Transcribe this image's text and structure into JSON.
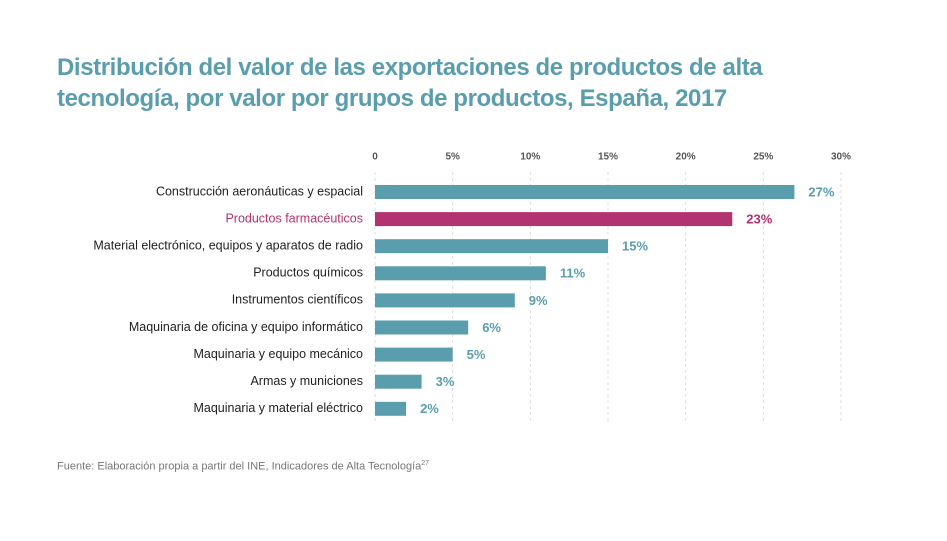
{
  "chart_data": {
    "type": "bar",
    "title": "Distribución del valor de las exportaciones de productos de alta\ntecnología, por valor por grupos de productos, España, 2017",
    "categories": [
      "Construcción aeronáuticas y espacial",
      "Productos farmacéuticos",
      "Material electrónico, equipos y aparatos de radio",
      "Productos químicos",
      "Instrumentos científicos",
      "Maquinaria de oficina y equipo informático",
      "Maquinaria y equipo mecánico",
      "Armas y municiones",
      "Maquinaria y material eléctrico"
    ],
    "values": [
      27,
      23,
      15,
      11,
      9,
      6,
      5,
      3,
      2
    ],
    "value_labels": [
      "27%",
      "23%",
      "15%",
      "11%",
      "9%",
      "6%",
      "5%",
      "3%",
      "2%"
    ],
    "colors": [
      "#5a9ead",
      "#b2336f",
      "#5a9ead",
      "#5a9ead",
      "#5a9ead",
      "#5a9ead",
      "#5a9ead",
      "#5a9ead",
      "#5a9ead"
    ],
    "xlim": [
      0,
      30
    ],
    "xticks": [
      0,
      {
        "value": 5,
        "label": "5%"
      },
      {
        "value": 10,
        "label": "10%"
      },
      {
        "value": 15,
        "label": "15%"
      },
      {
        "value": 20,
        "label": "20%"
      },
      {
        "value": 25,
        "label": "25%"
      },
      {
        "value": 30,
        "label": "30%"
      }
    ],
    "grid": true,
    "source": "Fuente: Elaboración propia a partir del INE, Indicadores de Alta Tecnología",
    "source_superscript": "27"
  }
}
